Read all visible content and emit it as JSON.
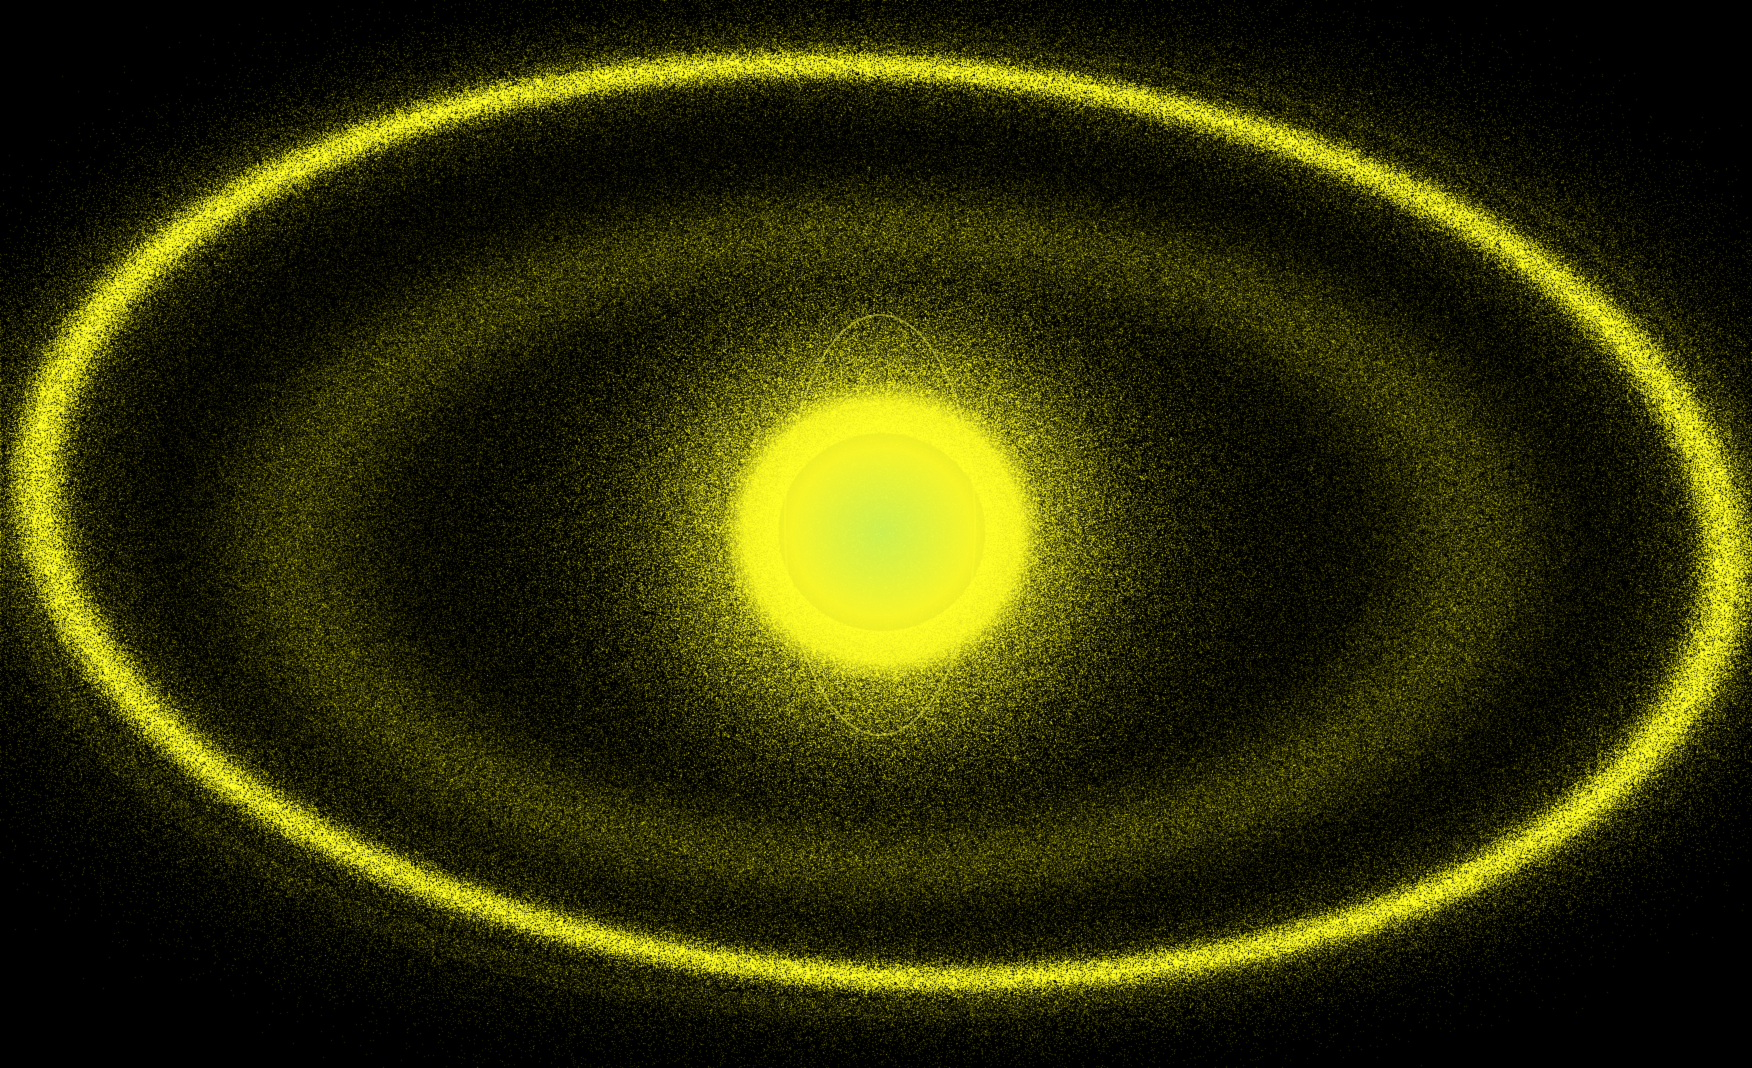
{
  "scene": {
    "subject": "",
    "background_color": "#000000",
    "particle_color": "#e6e614",
    "ring_highlight_color": "#f2f21c",
    "core_color": "#ffff33",
    "core_tint_color": "#b8ff3a"
  }
}
